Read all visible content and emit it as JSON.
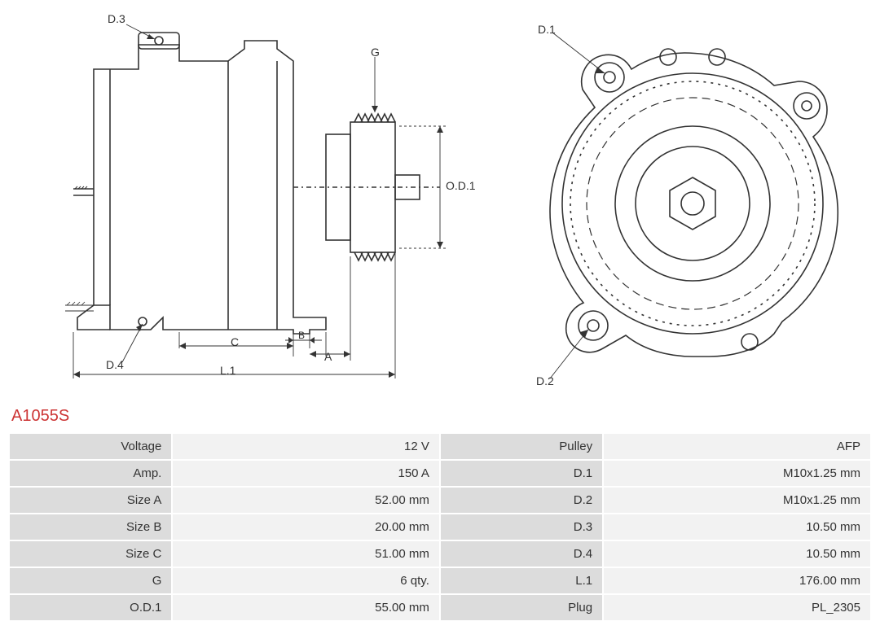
{
  "part_number": "A1055S",
  "colors": {
    "title": "#cc3333",
    "label_bg": "#dcdcdc",
    "value_bg": "#f2f2f2",
    "stroke": "#333333",
    "text": "#333333",
    "bg": "#ffffff"
  },
  "diagram_labels": {
    "side": {
      "D3": "D.3",
      "D4": "D.4",
      "G": "G",
      "OD1": "O.D.1",
      "A": "A",
      "B": "B",
      "C": "C",
      "L1": "L.1"
    },
    "front": {
      "D1": "D.1",
      "D2": "D.2"
    }
  },
  "specs_left": [
    {
      "label": "Voltage",
      "value": "12 V"
    },
    {
      "label": "Amp.",
      "value": "150 A"
    },
    {
      "label": "Size A",
      "value": "52.00 mm"
    },
    {
      "label": "Size B",
      "value": "20.00 mm"
    },
    {
      "label": "Size C",
      "value": "51.00 mm"
    },
    {
      "label": "G",
      "value": "6 qty."
    },
    {
      "label": "O.D.1",
      "value": "55.00 mm"
    }
  ],
  "specs_right": [
    {
      "label": "Pulley",
      "value": "AFP"
    },
    {
      "label": "D.1",
      "value": "M10x1.25 mm"
    },
    {
      "label": "D.2",
      "value": "M10x1.25 mm"
    },
    {
      "label": "D.3",
      "value": "10.50 mm"
    },
    {
      "label": "D.4",
      "value": "10.50 mm"
    },
    {
      "label": "L.1",
      "value": "176.00 mm"
    },
    {
      "label": "Plug",
      "value": "PL_2305"
    }
  ]
}
